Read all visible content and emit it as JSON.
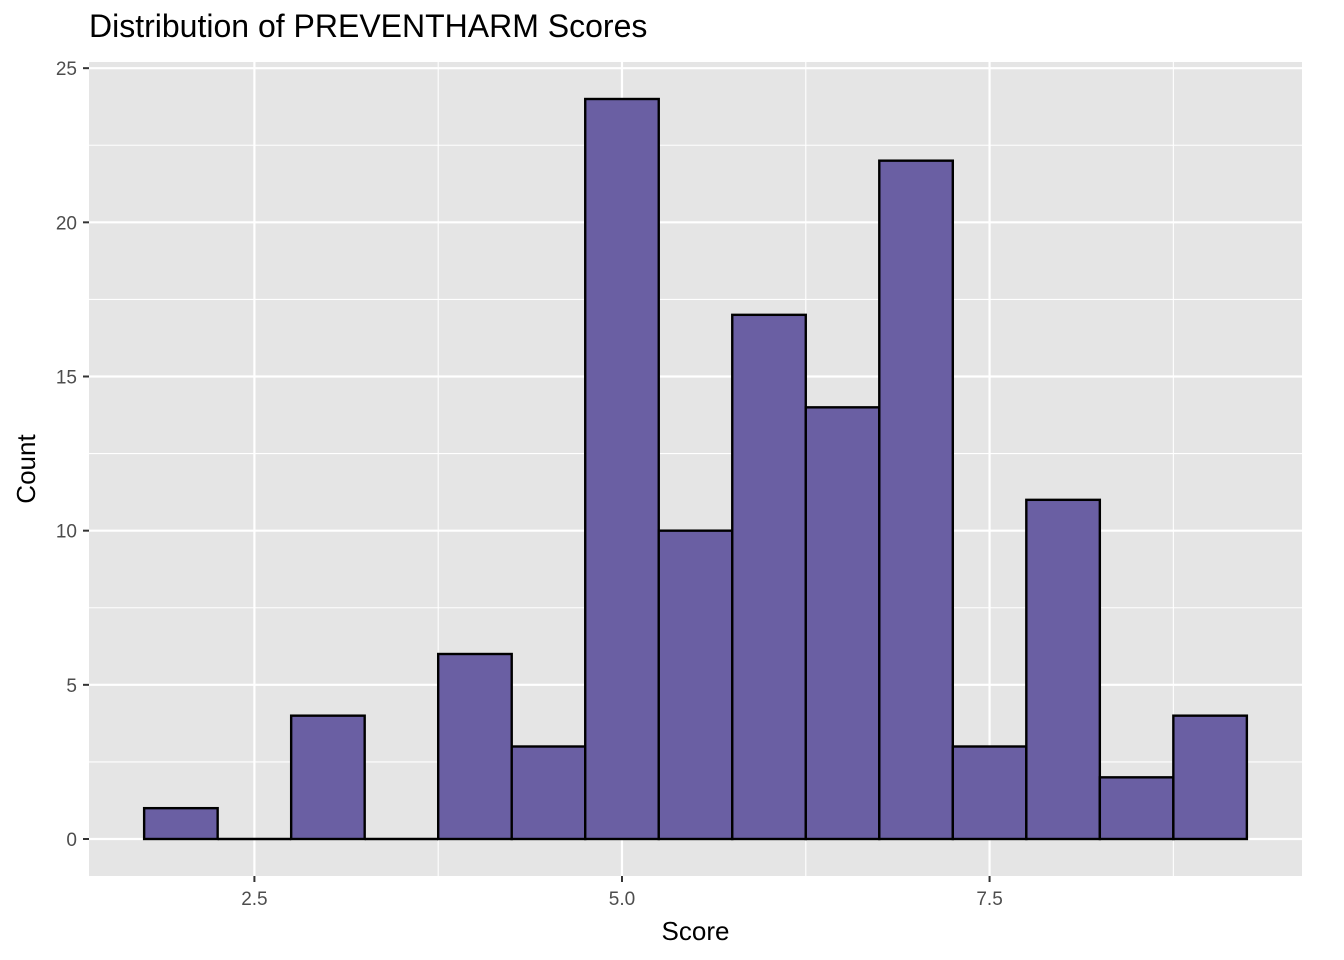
{
  "chart_data": {
    "type": "bar",
    "title": "Distribution of PREVENTHARM Scores",
    "xlabel": "Score",
    "ylabel": "Count",
    "bin_width": 0.5,
    "bins": [
      {
        "x0": 1.75,
        "x1": 2.25,
        "count": 1
      },
      {
        "x0": 2.25,
        "x1": 2.75,
        "count": 0
      },
      {
        "x0": 2.75,
        "x1": 3.25,
        "count": 4
      },
      {
        "x0": 3.25,
        "x1": 3.75,
        "count": 0
      },
      {
        "x0": 3.75,
        "x1": 4.25,
        "count": 6
      },
      {
        "x0": 4.25,
        "x1": 4.75,
        "count": 3
      },
      {
        "x0": 4.75,
        "x1": 5.25,
        "count": 24
      },
      {
        "x0": 5.25,
        "x1": 5.75,
        "count": 10
      },
      {
        "x0": 5.75,
        "x1": 6.25,
        "count": 17
      },
      {
        "x0": 6.25,
        "x1": 6.75,
        "count": 14
      },
      {
        "x0": 6.75,
        "x1": 7.25,
        "count": 22
      },
      {
        "x0": 7.25,
        "x1": 7.75,
        "count": 3
      },
      {
        "x0": 7.75,
        "x1": 8.25,
        "count": 11
      },
      {
        "x0": 8.25,
        "x1": 8.75,
        "count": 2
      },
      {
        "x0": 8.75,
        "x1": 9.25,
        "count": 4
      }
    ],
    "xlim": [
      1.375,
      9.625
    ],
    "ylim": [
      -1.2,
      25.2
    ],
    "x_ticks": [
      {
        "value": 2.5,
        "label": "2.5"
      },
      {
        "value": 5.0,
        "label": "5.0"
      },
      {
        "value": 7.5,
        "label": "7.5"
      }
    ],
    "y_ticks": [
      {
        "value": 0,
        "label": "0"
      },
      {
        "value": 5,
        "label": "5"
      },
      {
        "value": 10,
        "label": "10"
      },
      {
        "value": 15,
        "label": "15"
      },
      {
        "value": 20,
        "label": "20"
      },
      {
        "value": 25,
        "label": "25"
      }
    ],
    "grid": true,
    "colors": {
      "panel_background": "#e5e5e5",
      "grid": "#ffffff",
      "bar_fill": "#6a5fa3",
      "bar_outline": "#000000"
    }
  }
}
